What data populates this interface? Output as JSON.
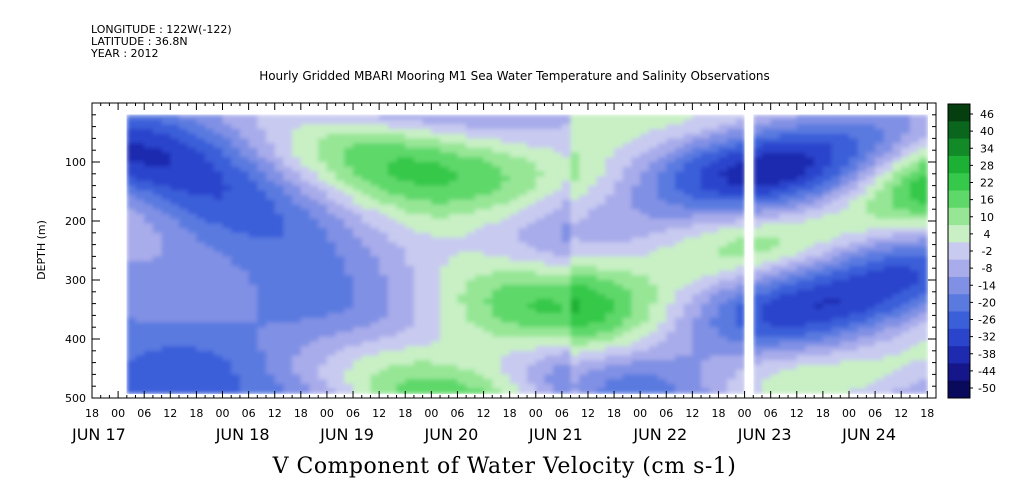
{
  "meta": {
    "longitude": "LONGITUDE : 122W(-122)",
    "latitude": "LATITUDE : 36.8N",
    "year": "YEAR : 2012"
  },
  "chart_data": {
    "type": "heatmap",
    "title": "Hourly Gridded MBARI Mooring M1 Sea Water Temperature and Salinity Observations",
    "xlabel": "V Component of Water Velocity (cm s-1)",
    "ylabel": "DEPTH (m)",
    "x_start": "2012-06-16T18:00",
    "x_end": "2012-06-24T20:00",
    "data_start": "2012-06-17T02:00",
    "data_end": "2012-06-24T18:00",
    "gap": [
      "2012-06-23T00:00",
      "2012-06-23T02:00"
    ],
    "ylim": [
      500,
      0
    ],
    "y_data_range": [
      20,
      485
    ],
    "y_ticks": [
      100,
      200,
      300,
      400,
      500
    ],
    "hour_ticks": [
      "18",
      "00",
      "06",
      "12",
      "18",
      "00",
      "06",
      "12",
      "18",
      "00",
      "06",
      "12",
      "18",
      "00",
      "06",
      "12",
      "18",
      "00",
      "06",
      "12",
      "18",
      "00",
      "06",
      "12",
      "18",
      "00",
      "06",
      "12",
      "18",
      "00",
      "06",
      "12",
      "18"
    ],
    "day_labels": [
      "JUN 17",
      "JUN 18",
      "JUN 19",
      "JUN 20",
      "JUN 21",
      "JUN 22",
      "JUN 23",
      "JUN 24"
    ],
    "colorbar": {
      "levels": [
        -50,
        -44,
        -38,
        -32,
        -26,
        -20,
        -14,
        -8,
        -2,
        4,
        10,
        16,
        22,
        28,
        34,
        40,
        46
      ],
      "tick_labels": [
        "46",
        "40",
        "34",
        "28",
        "22",
        "16",
        "10",
        "4",
        "-2",
        "-8",
        "-14",
        "-20",
        "-26",
        "-32",
        "-38",
        "-44",
        "-50"
      ],
      "colors": [
        "#0a0a5c",
        "#14168a",
        "#1e2bb0",
        "#2a44cc",
        "#3b5ed9",
        "#5a7ae0",
        "#8090e4",
        "#a8acea",
        "#c8caf0",
        "#c8f0c4",
        "#96e696",
        "#5fd86a",
        "#35c84a",
        "#1cb035",
        "#128a28",
        "#0a661c",
        "#053f10"
      ]
    },
    "grid": false
  }
}
